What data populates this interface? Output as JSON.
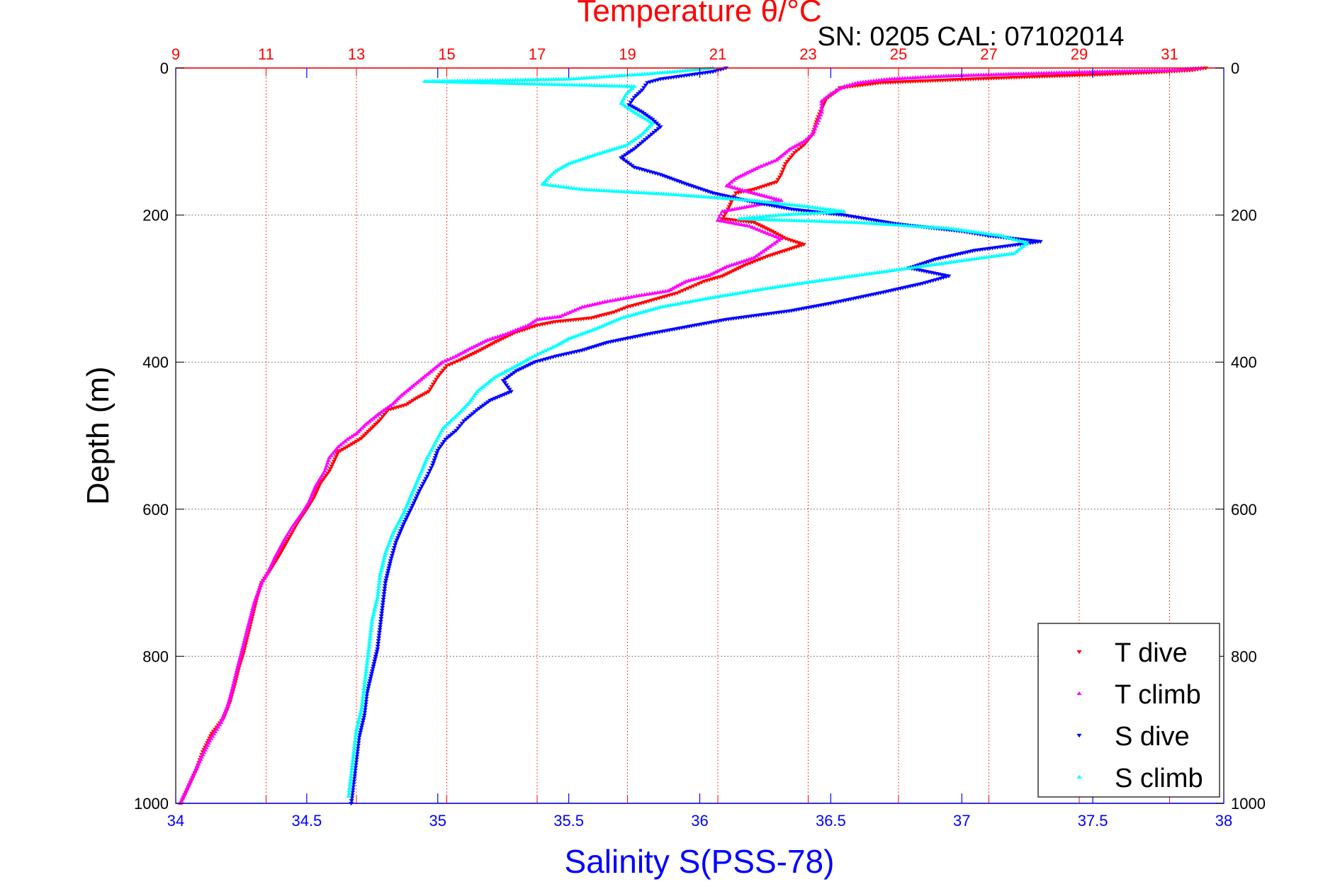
{
  "chart_data": {
    "type": "scatter",
    "title": "Temperature θ/°C",
    "subtitle": "SN: 0205  CAL: 07102014",
    "ylabel": "Depth (m)",
    "xlabel_bottom": "Salinity S(PSS-78)",
    "xlabel_top": "Temperature θ/°C",
    "y_reversed": true,
    "ylim": [
      0,
      1000
    ],
    "y_ticks": [
      "0",
      "200",
      "400",
      "600",
      "800",
      "1000"
    ],
    "y_tick_values": [
      0,
      200,
      400,
      600,
      800,
      1000
    ],
    "bottom_axis": {
      "variable": "salinity",
      "lim": [
        34,
        38
      ],
      "ticks": [
        "34",
        "34.5",
        "35",
        "35.5",
        "36",
        "36.5",
        "37",
        "37.5",
        "38"
      ],
      "tick_values": [
        34,
        34.5,
        35,
        35.5,
        36,
        36.5,
        37,
        37.5,
        38
      ]
    },
    "top_axis": {
      "variable": "temperature",
      "lim": [
        9,
        32.2
      ],
      "ticks": [
        "9",
        "11",
        "13",
        "15",
        "17",
        "19",
        "21",
        "23",
        "25",
        "27",
        "29",
        "31"
      ],
      "tick_values": [
        9,
        11,
        13,
        15,
        17,
        19,
        21,
        23,
        25,
        27,
        29,
        31
      ]
    },
    "grid": true,
    "legend_position": "bottom-right",
    "series": [
      {
        "name": "T dive",
        "axis": "top",
        "color": "#ff0000",
        "marker": "triangle-down",
        "points": [
          [
            31.8,
            0
          ],
          [
            31.5,
            3
          ],
          [
            30.6,
            6
          ],
          [
            29.4,
            9
          ],
          [
            27.9,
            12
          ],
          [
            26.2,
            16
          ],
          [
            24.6,
            20
          ],
          [
            23.7,
            27
          ],
          [
            23.6,
            33
          ],
          [
            23.4,
            42
          ],
          [
            23.3,
            55
          ],
          [
            23.2,
            70
          ],
          [
            23.1,
            90
          ],
          [
            22.9,
            105
          ],
          [
            22.7,
            115
          ],
          [
            22.5,
            130
          ],
          [
            22.4,
            145
          ],
          [
            22.3,
            155
          ],
          [
            21.8,
            165
          ],
          [
            21.4,
            170
          ],
          [
            21.3,
            182
          ],
          [
            21.2,
            195
          ],
          [
            21.1,
            205
          ],
          [
            21.8,
            210
          ],
          [
            22.2,
            222
          ],
          [
            22.5,
            232
          ],
          [
            22.9,
            240
          ],
          [
            22.1,
            256
          ],
          [
            21.6,
            268
          ],
          [
            21.1,
            283
          ],
          [
            20.7,
            290
          ],
          [
            20.4,
            298
          ],
          [
            20.1,
            306
          ],
          [
            19.7,
            313
          ],
          [
            19.3,
            320
          ],
          [
            19.0,
            325
          ],
          [
            18.7,
            332
          ],
          [
            18.2,
            340
          ],
          [
            17.4,
            345
          ],
          [
            17.0,
            350
          ],
          [
            16.5,
            360
          ],
          [
            16.1,
            372
          ],
          [
            15.7,
            385
          ],
          [
            15.3,
            397
          ],
          [
            15.0,
            405
          ],
          [
            14.8,
            420
          ],
          [
            14.6,
            440
          ],
          [
            14.3,
            450
          ],
          [
            14.1,
            458
          ],
          [
            13.7,
            465
          ],
          [
            13.5,
            480
          ],
          [
            13.3,
            492
          ],
          [
            13.1,
            504
          ],
          [
            12.8,
            515
          ],
          [
            12.6,
            522
          ],
          [
            12.5,
            535
          ],
          [
            12.4,
            548
          ],
          [
            12.2,
            565
          ],
          [
            12.05,
            585
          ],
          [
            11.9,
            600
          ],
          [
            11.7,
            618
          ],
          [
            11.5,
            640
          ],
          [
            11.3,
            662
          ],
          [
            11.1,
            682
          ],
          [
            10.9,
            700
          ],
          [
            10.8,
            720
          ],
          [
            10.7,
            745
          ],
          [
            10.6,
            770
          ],
          [
            10.5,
            795
          ],
          [
            10.4,
            815
          ],
          [
            10.3,
            840
          ],
          [
            10.2,
            862
          ],
          [
            10.05,
            885
          ],
          [
            9.8,
            905
          ],
          [
            9.6,
            930
          ],
          [
            9.45,
            955
          ],
          [
            9.3,
            975
          ],
          [
            9.15,
            995
          ]
        ]
      },
      {
        "name": "T climb",
        "axis": "top",
        "color": "#ff00ff",
        "marker": "triangle-up",
        "points": [
          [
            31.7,
            0
          ],
          [
            31.0,
            3
          ],
          [
            29.4,
            5
          ],
          [
            27.6,
            8
          ],
          [
            26.0,
            11
          ],
          [
            24.8,
            15
          ],
          [
            24.1,
            20
          ],
          [
            23.8,
            25
          ],
          [
            23.5,
            35
          ],
          [
            23.3,
            45
          ],
          [
            23.3,
            60
          ],
          [
            23.2,
            75
          ],
          [
            23.1,
            90
          ],
          [
            22.9,
            100
          ],
          [
            22.6,
            110
          ],
          [
            22.3,
            125
          ],
          [
            21.9,
            135
          ],
          [
            21.4,
            150
          ],
          [
            21.2,
            160
          ],
          [
            21.6,
            167
          ],
          [
            22.4,
            180
          ],
          [
            21.1,
            195
          ],
          [
            21.0,
            207
          ],
          [
            21.7,
            215
          ],
          [
            22.1,
            225
          ],
          [
            22.4,
            232
          ],
          [
            22.1,
            245
          ],
          [
            21.8,
            258
          ],
          [
            21.2,
            270
          ],
          [
            20.8,
            282
          ],
          [
            20.3,
            290
          ],
          [
            19.9,
            303
          ],
          [
            19.2,
            310
          ],
          [
            18.5,
            318
          ],
          [
            18.0,
            325
          ],
          [
            17.5,
            338
          ],
          [
            17.0,
            342
          ],
          [
            16.8,
            350
          ],
          [
            16.3,
            362
          ],
          [
            15.9,
            370
          ],
          [
            15.5,
            382
          ],
          [
            15.2,
            392
          ],
          [
            14.9,
            400
          ],
          [
            14.6,
            415
          ],
          [
            14.3,
            430
          ],
          [
            14.0,
            445
          ],
          [
            13.8,
            457
          ],
          [
            13.5,
            470
          ],
          [
            13.2,
            485
          ],
          [
            13.0,
            497
          ],
          [
            12.8,
            505
          ],
          [
            12.6,
            515
          ],
          [
            12.4,
            530
          ],
          [
            12.3,
            548
          ],
          [
            12.1,
            568
          ],
          [
            11.95,
            590
          ],
          [
            11.8,
            605
          ],
          [
            11.6,
            622
          ],
          [
            11.4,
            642
          ],
          [
            11.2,
            665
          ],
          [
            11.05,
            685
          ],
          [
            10.9,
            700
          ],
          [
            10.75,
            725
          ],
          [
            10.65,
            748
          ],
          [
            10.55,
            772
          ],
          [
            10.45,
            796
          ],
          [
            10.35,
            820
          ],
          [
            10.25,
            845
          ],
          [
            10.15,
            868
          ],
          [
            10.0,
            890
          ],
          [
            9.75,
            915
          ],
          [
            9.55,
            940
          ],
          [
            9.4,
            960
          ],
          [
            9.25,
            980
          ],
          [
            9.1,
            1000
          ]
        ]
      },
      {
        "name": "S dive",
        "axis": "bottom",
        "color": "#0000ff",
        "marker": "triangle-down",
        "points": [
          [
            36.1,
            0
          ],
          [
            36.05,
            5
          ],
          [
            35.95,
            10
          ],
          [
            35.85,
            15
          ],
          [
            35.8,
            20
          ],
          [
            35.78,
            30
          ],
          [
            35.75,
            40
          ],
          [
            35.73,
            50
          ],
          [
            35.78,
            60
          ],
          [
            35.82,
            70
          ],
          [
            35.85,
            80
          ],
          [
            35.8,
            95
          ],
          [
            35.75,
            110
          ],
          [
            35.7,
            122
          ],
          [
            35.75,
            135
          ],
          [
            35.85,
            145
          ],
          [
            35.95,
            158
          ],
          [
            36.05,
            170
          ],
          [
            36.2,
            182
          ],
          [
            36.35,
            192
          ],
          [
            36.55,
            200
          ],
          [
            36.75,
            212
          ],
          [
            37.0,
            222
          ],
          [
            37.1,
            228
          ],
          [
            37.2,
            232
          ],
          [
            37.3,
            236
          ],
          [
            37.05,
            248
          ],
          [
            36.9,
            260
          ],
          [
            36.8,
            272
          ],
          [
            36.95,
            283
          ],
          [
            36.85,
            293
          ],
          [
            36.7,
            305
          ],
          [
            36.5,
            320
          ],
          [
            36.35,
            330
          ],
          [
            36.1,
            342
          ],
          [
            35.95,
            352
          ],
          [
            35.8,
            362
          ],
          [
            35.65,
            373
          ],
          [
            35.55,
            384
          ],
          [
            35.45,
            392
          ],
          [
            35.37,
            400
          ],
          [
            35.3,
            412
          ],
          [
            35.25,
            425
          ],
          [
            35.28,
            440
          ],
          [
            35.2,
            452
          ],
          [
            35.15,
            465
          ],
          [
            35.1,
            480
          ],
          [
            35.07,
            493
          ],
          [
            35.03,
            505
          ],
          [
            35.0,
            520
          ],
          [
            34.98,
            540
          ],
          [
            34.96,
            555
          ],
          [
            34.93,
            575
          ],
          [
            34.9,
            598
          ],
          [
            34.87,
            620
          ],
          [
            34.84,
            645
          ],
          [
            34.82,
            670
          ],
          [
            34.8,
            700
          ],
          [
            34.79,
            730
          ],
          [
            34.78,
            760
          ],
          [
            34.77,
            790
          ],
          [
            34.75,
            820
          ],
          [
            34.73,
            850
          ],
          [
            34.72,
            880
          ],
          [
            34.7,
            910
          ],
          [
            34.69,
            940
          ],
          [
            34.68,
            970
          ],
          [
            34.67,
            1000
          ]
        ]
      },
      {
        "name": "S climb",
        "axis": "bottom",
        "color": "#00ffff",
        "marker": "triangle-up",
        "points": [
          [
            36.05,
            0
          ],
          [
            35.8,
            8
          ],
          [
            35.5,
            15
          ],
          [
            35.2,
            17
          ],
          [
            34.95,
            18
          ],
          [
            35.75,
            25
          ],
          [
            35.72,
            35
          ],
          [
            35.7,
            48
          ],
          [
            35.75,
            60
          ],
          [
            35.82,
            75
          ],
          [
            35.78,
            90
          ],
          [
            35.72,
            105
          ],
          [
            35.6,
            118
          ],
          [
            35.5,
            130
          ],
          [
            35.45,
            140
          ],
          [
            35.42,
            150
          ],
          [
            35.4,
            158
          ],
          [
            35.55,
            165
          ],
          [
            35.9,
            172
          ],
          [
            36.2,
            180
          ],
          [
            36.4,
            188
          ],
          [
            36.55,
            195
          ],
          [
            36.3,
            200
          ],
          [
            36.15,
            205
          ],
          [
            36.6,
            210
          ],
          [
            36.95,
            218
          ],
          [
            37.15,
            228
          ],
          [
            37.25,
            238
          ],
          [
            37.2,
            252
          ],
          [
            37.0,
            262
          ],
          [
            36.8,
            272
          ],
          [
            36.6,
            282
          ],
          [
            36.4,
            292
          ],
          [
            36.25,
            300
          ],
          [
            36.05,
            312
          ],
          [
            35.85,
            325
          ],
          [
            35.7,
            340
          ],
          [
            35.6,
            355
          ],
          [
            35.5,
            368
          ],
          [
            35.45,
            378
          ],
          [
            35.4,
            386
          ],
          [
            35.35,
            395
          ],
          [
            35.3,
            405
          ],
          [
            35.22,
            420
          ],
          [
            35.15,
            440
          ],
          [
            35.12,
            455
          ],
          [
            35.08,
            470
          ],
          [
            35.02,
            490
          ],
          [
            34.99,
            510
          ],
          [
            34.96,
            530
          ],
          [
            34.93,
            555
          ],
          [
            34.9,
            580
          ],
          [
            34.87,
            605
          ],
          [
            34.83,
            632
          ],
          [
            34.8,
            660
          ],
          [
            34.78,
            690
          ],
          [
            34.77,
            720
          ],
          [
            34.75,
            750
          ],
          [
            34.74,
            780
          ],
          [
            34.73,
            810
          ],
          [
            34.72,
            840
          ],
          [
            34.71,
            870
          ],
          [
            34.69,
            900
          ],
          [
            34.68,
            930
          ],
          [
            34.67,
            960
          ],
          [
            34.66,
            990
          ]
        ]
      }
    ],
    "legend": [
      "T dive",
      "T climb",
      "S dive",
      "S climb"
    ]
  }
}
